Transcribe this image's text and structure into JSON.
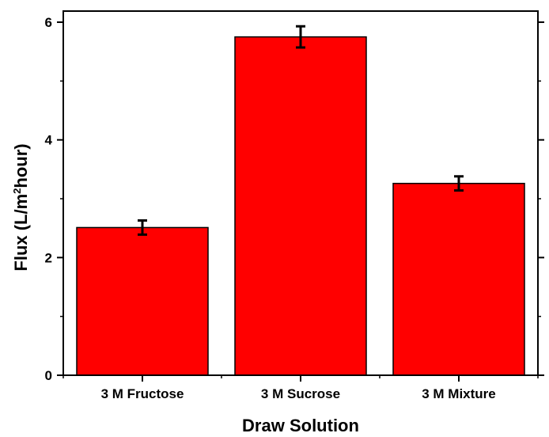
{
  "chart_data": {
    "type": "bar",
    "title": "",
    "xlabel": "Draw Solution",
    "ylabel_main": "Flux (L/m",
    "ylabel_sup": "2",
    "ylabel_tail": "hour)",
    "categories": [
      "3 M Fructose",
      "3 M Sucrose",
      "3 M Mixture"
    ],
    "values": [
      2.51,
      5.75,
      3.26
    ],
    "errors": [
      0.12,
      0.18,
      0.12
    ],
    "ylim": [
      0,
      6.0
    ],
    "yticks": [
      "0",
      "2",
      "4",
      "6"
    ],
    "bar_color": "#ff0000",
    "bar_edge_color": "#000000",
    "grid": false
  }
}
